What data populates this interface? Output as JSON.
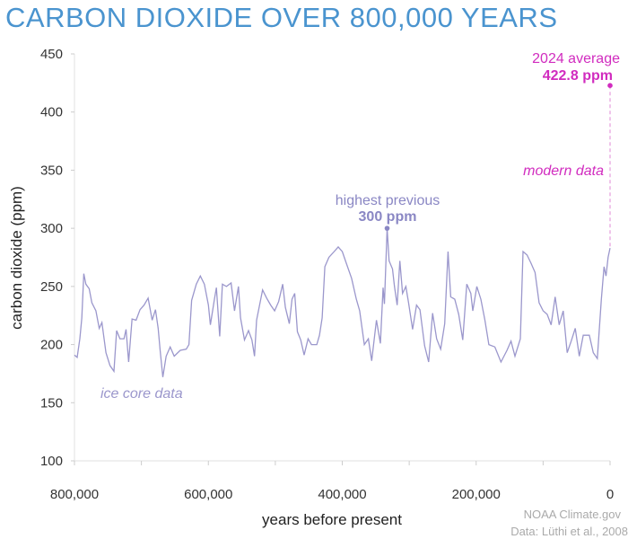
{
  "title": "CARBON DIOXIDE OVER 800,000 YEARS",
  "chart_data": {
    "type": "line",
    "title": "CARBON DIOXIDE OVER 800,000 YEARS",
    "xlabel": "years before present",
    "ylabel": "carbon dioxide (ppm)",
    "xlim": [
      800000,
      0
    ],
    "ylim": [
      100,
      450
    ],
    "x_reversed": true,
    "grid": false,
    "xticks": [
      "800,000",
      "600,000",
      "400,000",
      "200,000",
      "0"
    ],
    "yticks": [
      "100",
      "150",
      "200",
      "250",
      "300",
      "350",
      "400",
      "450"
    ],
    "colors": {
      "ice_core": "#9b97cc",
      "modern": "#d12cbf",
      "title": "#4a94cf"
    },
    "series": [
      {
        "name": "ice core data",
        "x_kyr_before_present": [
          800,
          796,
          792,
          789,
          786,
          783,
          778,
          774,
          768,
          763,
          759,
          753,
          747,
          741,
          737,
          732,
          726,
          723,
          719,
          714,
          708,
          702,
          696,
          690,
          684,
          679,
          675,
          672,
          668,
          663,
          657,
          651,
          642,
          633,
          629,
          625,
          618,
          612,
          606,
          600,
          597,
          591,
          588,
          583,
          579,
          573,
          566,
          561,
          555,
          552,
          546,
          540,
          535,
          531,
          528,
          519,
          513,
          507,
          501,
          495,
          489,
          485,
          479,
          475,
          471,
          467,
          462,
          457,
          451,
          446,
          438,
          434,
          430,
          426,
          420,
          412,
          406,
          400,
          394,
          386,
          379,
          374,
          367,
          361,
          356,
          349,
          343,
          339,
          337,
          333,
          330,
          325,
          322,
          318,
          314,
          310,
          305,
          301,
          295,
          289,
          284,
          277,
          271,
          265,
          259,
          253,
          247,
          242,
          238,
          232,
          226,
          220,
          214,
          208,
          205,
          199,
          193,
          187,
          181,
          172,
          163,
          154,
          148,
          142,
          134,
          130,
          124,
          118,
          112,
          106,
          100,
          94,
          88,
          82,
          76,
          70,
          64,
          58,
          52,
          46,
          40,
          31,
          25,
          19,
          13,
          9,
          6,
          3,
          0
        ],
        "y_ppm": [
          191,
          189,
          205,
          223,
          261,
          252,
          248,
          236,
          229,
          214,
          219,
          193,
          182,
          177,
          212,
          205,
          205,
          213,
          185,
          222,
          221,
          230,
          234,
          240,
          221,
          230,
          214,
          195,
          172,
          190,
          198,
          190,
          195,
          196,
          200,
          238,
          252,
          259,
          252,
          234,
          217,
          239,
          249,
          207,
          252,
          250,
          253,
          229,
          250,
          223,
          204,
          212,
          204,
          190,
          221,
          247,
          240,
          234,
          229,
          237,
          252,
          232,
          218,
          239,
          244,
          211,
          204,
          191,
          205,
          200,
          200,
          208,
          223,
          267,
          275,
          280,
          284,
          280,
          270,
          257,
          239,
          229,
          200,
          205,
          186,
          221,
          201,
          249,
          235,
          300,
          272,
          265,
          250,
          234,
          272,
          244,
          250,
          236,
          213,
          234,
          230,
          199,
          185,
          227,
          205,
          196,
          218,
          280,
          241,
          239,
          226,
          204,
          252,
          244,
          229,
          250,
          239,
          221,
          200,
          198,
          185,
          195,
          203,
          190,
          205,
          280,
          277,
          270,
          262,
          236,
          229,
          226,
          217,
          241,
          217,
          229,
          193,
          203,
          214,
          190,
          208,
          208,
          193,
          188,
          239,
          267,
          259,
          275,
          283
        ]
      }
    ],
    "annotations": {
      "ice_core": "ice core data",
      "modern": "modern data",
      "highest_previous_label": "highest previous",
      "highest_previous_value": "300 ppm",
      "highest_previous_ppm": 300,
      "highest_previous_kyr": 333,
      "current_label": "2024 average",
      "current_value": "422.8 ppm",
      "current_ppm": 422.8
    }
  },
  "credits": {
    "source": "NOAA Climate.gov",
    "data": "Data: Lüthi et al., 2008"
  }
}
